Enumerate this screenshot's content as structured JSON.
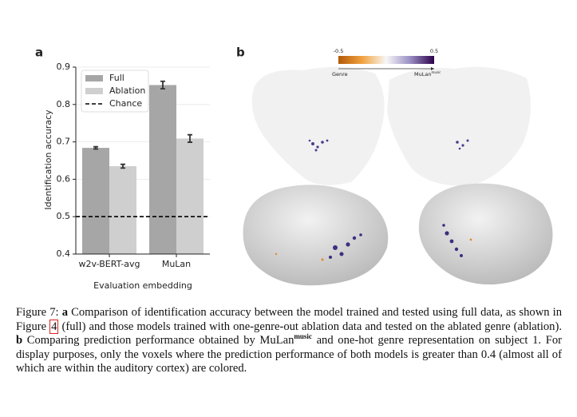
{
  "chart_data": {
    "type": "bar",
    "panel_label": "a",
    "y_label": "Identification accuracy",
    "x_label": "Evaluation embedding",
    "categories": [
      "w2v-BERT-avg",
      "MuLan"
    ],
    "series": [
      {
        "name": "Full",
        "color": "#a6a6a6",
        "values": [
          0.684,
          0.852
        ],
        "errors": [
          0.003,
          0.01
        ]
      },
      {
        "name": "Ablation",
        "color": "#cfcfcf",
        "values": [
          0.635,
          0.709
        ],
        "errors": [
          0.005,
          0.01
        ]
      }
    ],
    "chance": {
      "name": "Chance",
      "value": 0.5
    },
    "ylim": [
      0.4,
      0.9
    ],
    "yticks": [
      0.4,
      0.5,
      0.6,
      0.7,
      0.8,
      0.9
    ],
    "grid": true,
    "legend": "upper left"
  },
  "panel_b": {
    "panel_label": "b",
    "colorbar": {
      "lim": [
        -0.5,
        0.5
      ],
      "ticks": [
        -0.5,
        0.5
      ],
      "left_label": "Genre",
      "right_label": "MuLan",
      "right_label_sup": "music"
    }
  },
  "caption": {
    "parts": [
      "Figure 7:",
      "a",
      "Comparison of identification accuracy between the model trained and tested using full data, as shown in Figure",
      "4",
      "(full) and those models trained with one-genre-out ablation data and tested on the ablated genre (ablation).",
      "b",
      "Comparing prediction performance obtained by MuLan",
      "music",
      "and one-hot genre representation on subject 1. For display purposes, only the voxels where the prediction performance of both models is greater than",
      "0.4",
      "(almost all of which are within the auditory cortex) are colored."
    ]
  }
}
